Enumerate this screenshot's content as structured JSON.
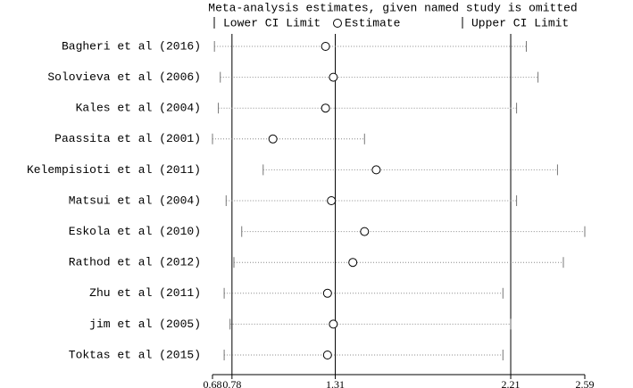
{
  "chart_data": {
    "type": "sensitivity",
    "title": "Meta-analysis estimates, given named study is omitted",
    "categories": [
      "Bagheri et al (2016)",
      "Solovieva et al  (2006)",
      "Kales et al (2004)",
      "Paassita et al (2001)",
      "Kelempisioti et al  (2011)",
      "Matsui et al (2004)",
      "Eskola et al (2010)",
      "Rathod et al (2012)",
      "Zhu et al (2011)",
      "jim et al (2005)",
      "Toktas et al (2015)"
    ],
    "series": [
      {
        "name": "Lower CI Limit",
        "values": [
          0.69,
          0.72,
          0.71,
          0.68,
          0.94,
          0.75,
          0.83,
          0.79,
          0.74,
          0.77,
          0.74
        ]
      },
      {
        "name": "Estimate",
        "values": [
          1.26,
          1.3,
          1.26,
          0.99,
          1.52,
          1.29,
          1.46,
          1.4,
          1.27,
          1.3,
          1.27
        ]
      },
      {
        "name": "Upper CI Limit",
        "values": [
          2.29,
          2.35,
          2.24,
          1.46,
          2.45,
          2.24,
          2.59,
          2.48,
          2.17,
          2.21,
          2.17
        ]
      }
    ],
    "overall": {
      "lower": 0.78,
      "estimate": 1.31,
      "upper": 2.21
    },
    "xlim": [
      0.68,
      2.59
    ],
    "xticks": [
      0.68,
      0.78,
      1.31,
      2.21,
      2.59
    ]
  }
}
